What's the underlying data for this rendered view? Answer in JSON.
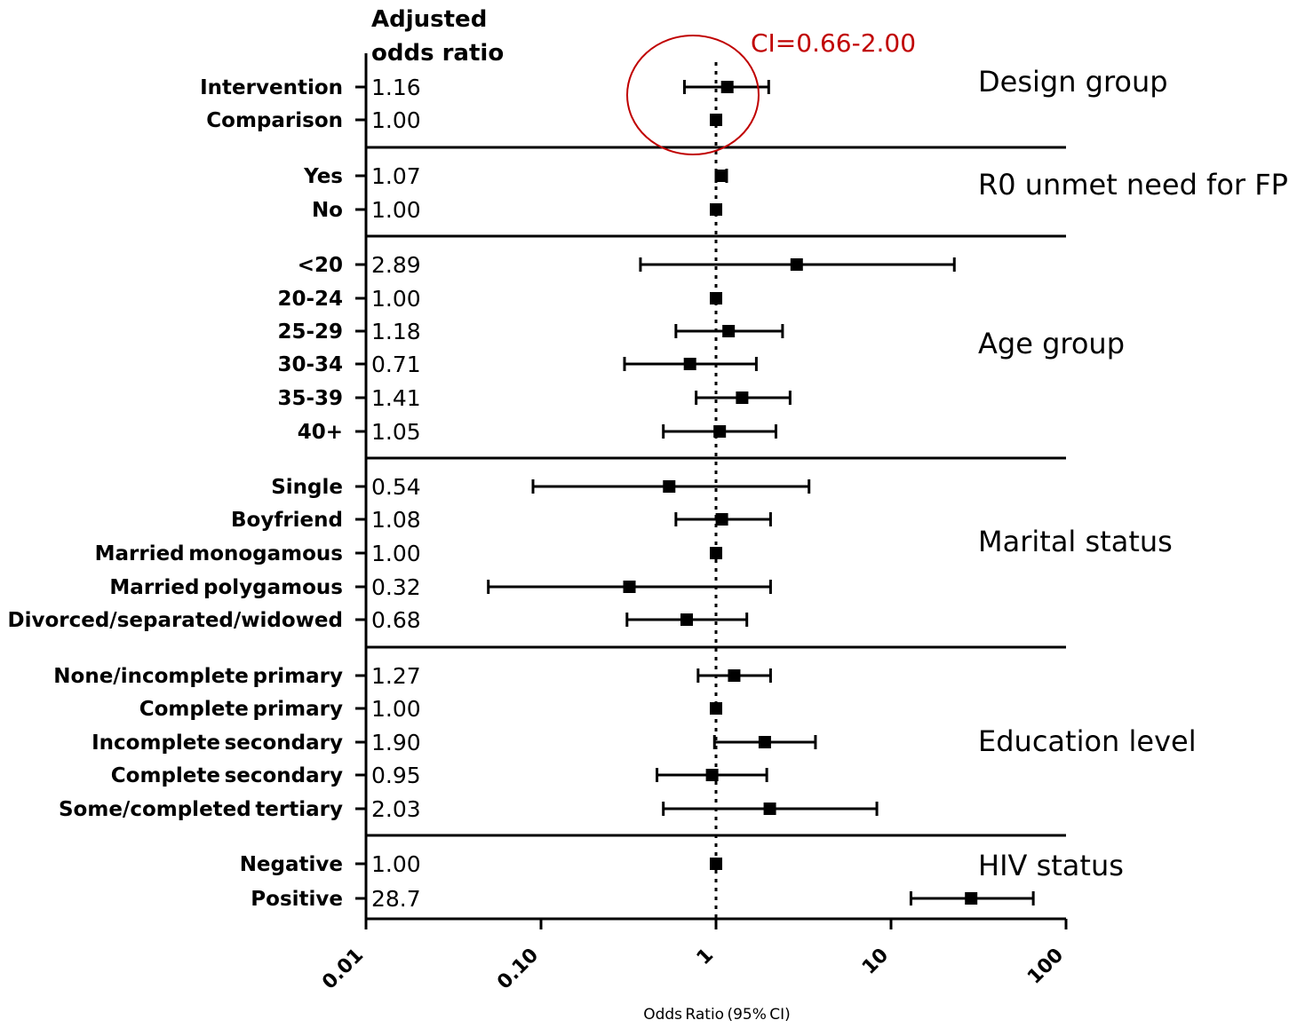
{
  "chart_data": {
    "type": "forest",
    "column_header": [
      "Adjusted",
      "odds ratio"
    ],
    "xlabel": "Odds Ratio (95% CI)",
    "xscale": "log",
    "xlim": [
      0.01,
      100
    ],
    "xticks": [
      "0.01",
      "0.10",
      "1",
      "10",
      "100"
    ],
    "reference_line": 1,
    "annotation": {
      "text": "CI=0.66-2.00",
      "color": "#c00000",
      "target_row": "Intervention"
    },
    "groups": [
      {
        "name": "Design group",
        "rows": [
          {
            "label": "Intervention",
            "or_text": "1.16",
            "or": 1.16,
            "lo": 0.66,
            "hi": 2.0
          },
          {
            "label": "Comparison",
            "or_text": "1.00",
            "or": 1.0,
            "lo": null,
            "hi": null
          }
        ]
      },
      {
        "name": "R0 unmet need for FP",
        "rows": [
          {
            "label": "Yes",
            "or_text": "1.07",
            "or": 1.07,
            "lo": 1.0,
            "hi": 1.15
          },
          {
            "label": "No",
            "or_text": "1.00",
            "or": 1.0,
            "lo": null,
            "hi": null
          }
        ]
      },
      {
        "name": "Age group",
        "rows": [
          {
            "label": "<20",
            "or_text": "2.89",
            "or": 2.89,
            "lo": 0.37,
            "hi": 23
          },
          {
            "label": "20-24",
            "or_text": "1.00",
            "or": 1.0,
            "lo": null,
            "hi": null
          },
          {
            "label": "25-29",
            "or_text": "1.18",
            "or": 1.18,
            "lo": 0.59,
            "hi": 2.4
          },
          {
            "label": "30-34",
            "or_text": "0.71",
            "or": 0.71,
            "lo": 0.3,
            "hi": 1.7
          },
          {
            "label": "35-39",
            "or_text": "1.41",
            "or": 1.41,
            "lo": 0.77,
            "hi": 2.65
          },
          {
            "label": "40+",
            "or_text": "1.05",
            "or": 1.05,
            "lo": 0.5,
            "hi": 2.2
          }
        ]
      },
      {
        "name": "Marital status",
        "rows": [
          {
            "label": "Single",
            "or_text": "0.54",
            "or": 0.54,
            "lo": 0.09,
            "hi": 3.4
          },
          {
            "label": "Boyfriend",
            "or_text": "1.08",
            "or": 1.08,
            "lo": 0.59,
            "hi": 2.05
          },
          {
            "label": "Married monogamous",
            "or_text": "1.00",
            "or": 1.0,
            "lo": null,
            "hi": null
          },
          {
            "label": "Married polygamous",
            "or_text": "0.32",
            "or": 0.32,
            "lo": 0.05,
            "hi": 2.05
          },
          {
            "label": "Divorced/separated/widowed",
            "or_text": "0.68",
            "or": 0.68,
            "lo": 0.31,
            "hi": 1.5
          }
        ]
      },
      {
        "name": "Education level",
        "rows": [
          {
            "label": "None/incomplete primary",
            "or_text": "1.27",
            "or": 1.27,
            "lo": 0.79,
            "hi": 2.05
          },
          {
            "label": "Complete primary",
            "or_text": "1.00",
            "or": 1.0,
            "lo": null,
            "hi": null
          },
          {
            "label": "Incomplete secondary",
            "or_text": "1.90",
            "or": 1.9,
            "lo": 0.98,
            "hi": 3.7
          },
          {
            "label": "Complete secondary",
            "or_text": "0.95",
            "or": 0.95,
            "lo": 0.46,
            "hi": 1.95
          },
          {
            "label": "Some/completed tertiary",
            "or_text": "2.03",
            "or": 2.03,
            "lo": 0.5,
            "hi": 8.3
          }
        ]
      },
      {
        "name": "HIV status",
        "rows": [
          {
            "label": "Negative",
            "or_text": "1.00",
            "or": 1.0,
            "lo": null,
            "hi": null
          },
          {
            "label": "Positive",
            "or_text": "28.7",
            "or": 28.7,
            "lo": 13,
            "hi": 65
          }
        ]
      }
    ]
  }
}
